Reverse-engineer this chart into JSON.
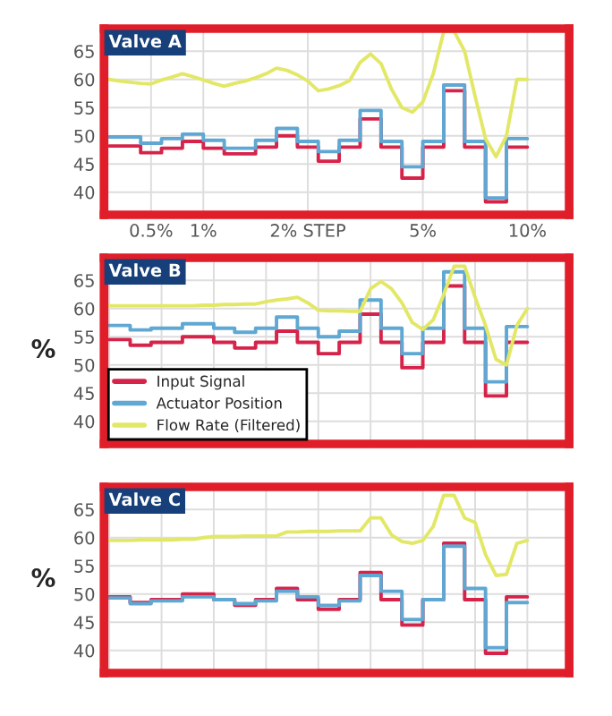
{
  "chart_data": [
    {
      "type": "step",
      "title": "Valve A",
      "categories": [
        null,
        null,
        null,
        null,
        "0.5%",
        null,
        null,
        null,
        null,
        "1%",
        null,
        null,
        null,
        null,
        null,
        null,
        null,
        null,
        null,
        "2% STEP",
        null,
        null,
        null,
        null,
        null,
        null,
        null,
        null,
        null,
        null,
        "5%",
        null,
        null,
        null,
        null,
        null,
        null,
        null,
        null,
        null,
        "10%"
      ],
      "ylim": [
        36,
        69
      ],
      "yticks": [
        40,
        45,
        50,
        55,
        60,
        65
      ],
      "grid": true,
      "legend": false,
      "series": [
        {
          "color": "#d6234a",
          "values": [
            48.2,
            48.2,
            48.2,
            47,
            47,
            47.8,
            47.8,
            49,
            49,
            47.8,
            47.8,
            46.8,
            46.8,
            46.8,
            48,
            48,
            50,
            50,
            48,
            48,
            45.5,
            45.5,
            48,
            48,
            53,
            53,
            48,
            48,
            42.5,
            42.5,
            48,
            48,
            58,
            58,
            48,
            48,
            38.3,
            38.3,
            48,
            48,
            48
          ]
        },
        {
          "color": "#5fa8d3",
          "values": [
            49.8,
            49.8,
            49.8,
            48.7,
            48.7,
            49.5,
            49.5,
            50.3,
            50.3,
            49.2,
            49.2,
            47.8,
            47.8,
            47.8,
            49.2,
            49.2,
            51.3,
            51.3,
            49,
            49,
            47.2,
            47.2,
            49.2,
            49.2,
            54.5,
            54.5,
            49,
            49,
            44.5,
            44.5,
            49,
            49,
            59,
            59,
            49,
            49,
            39,
            39,
            49.5,
            49.5,
            49.5
          ]
        },
        {
          "type": "line",
          "color": "#e2e866",
          "values": [
            60,
            59.7,
            59.5,
            59.3,
            59.2,
            59.9,
            60.4,
            61,
            60.5,
            59.9,
            59.3,
            58.8,
            59.3,
            59.7,
            60.3,
            61,
            62,
            61.6,
            60.8,
            59.7,
            58,
            58.3,
            58.9,
            59.8,
            63,
            64.5,
            62.8,
            58.3,
            55,
            54.2,
            56,
            61,
            68.5,
            68.5,
            65,
            57,
            49.5,
            46.3,
            50,
            60,
            60
          ]
        }
      ]
    },
    {
      "type": "step",
      "title": "Valve B",
      "ylabel": "%",
      "categories": [
        null,
        null,
        null,
        null,
        null,
        null,
        null,
        null,
        null,
        null,
        null,
        null,
        null,
        null,
        null,
        null,
        null,
        null,
        null,
        null,
        null,
        null,
        null,
        null,
        null,
        null,
        null,
        null,
        null,
        null,
        null,
        null,
        null,
        null,
        null,
        null,
        null,
        null,
        null,
        null,
        null
      ],
      "ylim": [
        36,
        69
      ],
      "yticks": [
        40,
        45,
        50,
        55,
        60,
        65
      ],
      "grid": true,
      "legend": "bottom left",
      "series": [
        {
          "name": "Input Signal",
          "color": "#d6234a",
          "values": [
            54.5,
            54.5,
            53.5,
            53.5,
            54,
            54,
            54,
            55,
            55,
            55,
            54,
            54,
            53,
            53,
            54,
            54,
            56,
            56,
            54,
            54,
            52,
            52,
            54,
            54,
            59,
            59,
            54,
            54,
            49.5,
            49.5,
            54,
            54,
            64,
            64,
            54,
            54,
            44.5,
            44.5,
            54,
            54,
            54
          ]
        },
        {
          "name": "Actuator Position",
          "color": "#5fa8d3",
          "values": [
            57,
            57,
            56.2,
            56.2,
            56.5,
            56.5,
            56.5,
            57.3,
            57.3,
            57.3,
            56.5,
            56.5,
            55.8,
            55.8,
            56.5,
            56.5,
            58.5,
            58.5,
            56.5,
            56.5,
            55,
            55,
            56,
            56,
            61.5,
            61.5,
            56.5,
            56.5,
            52,
            52,
            56.5,
            56.5,
            66.5,
            66.5,
            56.5,
            56.5,
            47,
            47,
            56.8,
            56.8,
            56.8
          ]
        },
        {
          "name": "Flow Rate (Filtered)",
          "type": "line",
          "color": "#e2e866",
          "values": [
            60.5,
            60.5,
            60.5,
            60.5,
            60.5,
            60.5,
            60.5,
            60.5,
            60.5,
            60.6,
            60.6,
            60.7,
            60.7,
            60.8,
            60.8,
            61.2,
            61.5,
            61.7,
            62,
            61,
            59.7,
            59.6,
            59.6,
            59.5,
            59.5,
            63.5,
            64.8,
            63.5,
            61,
            57.5,
            56.3,
            58,
            62.5,
            67.5,
            67.5,
            62,
            57,
            51,
            50,
            57,
            60
          ]
        }
      ]
    },
    {
      "type": "step",
      "title": "Valve C",
      "ylabel": "%",
      "categories": [
        null,
        null,
        null,
        null,
        null,
        null,
        null,
        null,
        null,
        null,
        null,
        null,
        null,
        null,
        null,
        null,
        null,
        null,
        null,
        null,
        null,
        null,
        null,
        null,
        null,
        null,
        null,
        null,
        null,
        null,
        null,
        null,
        null,
        null,
        null,
        null,
        null,
        null,
        null,
        null,
        null
      ],
      "ylim": [
        36,
        69
      ],
      "yticks": [
        40,
        45,
        50,
        55,
        60,
        65
      ],
      "grid": true,
      "legend": false,
      "series": [
        {
          "color": "#d6234a",
          "values": [
            49.5,
            49.5,
            48.5,
            48.5,
            49,
            49,
            49,
            50,
            50,
            50,
            49,
            49,
            48,
            48,
            49,
            49,
            51,
            51,
            49,
            49,
            47.3,
            47.3,
            49,
            49,
            53.8,
            53.8,
            49,
            49,
            44.5,
            44.5,
            49,
            49,
            59,
            59,
            49,
            49,
            39.5,
            39.5,
            49.5,
            49.5,
            49.5
          ]
        },
        {
          "color": "#5fa8d3",
          "values": [
            49.3,
            49.3,
            48.3,
            48.3,
            48.8,
            48.8,
            48.8,
            49.5,
            49.5,
            49.5,
            49,
            49,
            48.3,
            48.3,
            48.8,
            48.8,
            50.5,
            50.5,
            49.5,
            49.5,
            48,
            48,
            48.8,
            48.8,
            53.3,
            53.3,
            50.5,
            50.5,
            45.5,
            45.5,
            49,
            49,
            58.5,
            58.5,
            51,
            51,
            40.5,
            40.5,
            48.5,
            48.5,
            48.5
          ]
        },
        {
          "type": "line",
          "color": "#e2e866",
          "values": [
            59.5,
            59.5,
            59.5,
            59.6,
            59.6,
            59.6,
            59.6,
            59.7,
            59.7,
            60,
            60.2,
            60.2,
            60.2,
            60.3,
            60.3,
            60.3,
            60.3,
            61,
            61,
            61.1,
            61.1,
            61.1,
            61.2,
            61.2,
            61.2,
            63.5,
            63.5,
            60.5,
            59.3,
            59,
            59.5,
            62,
            67.5,
            67.5,
            63.5,
            62.7,
            57,
            53.3,
            53.5,
            59,
            59.5
          ]
        }
      ]
    }
  ]
}
